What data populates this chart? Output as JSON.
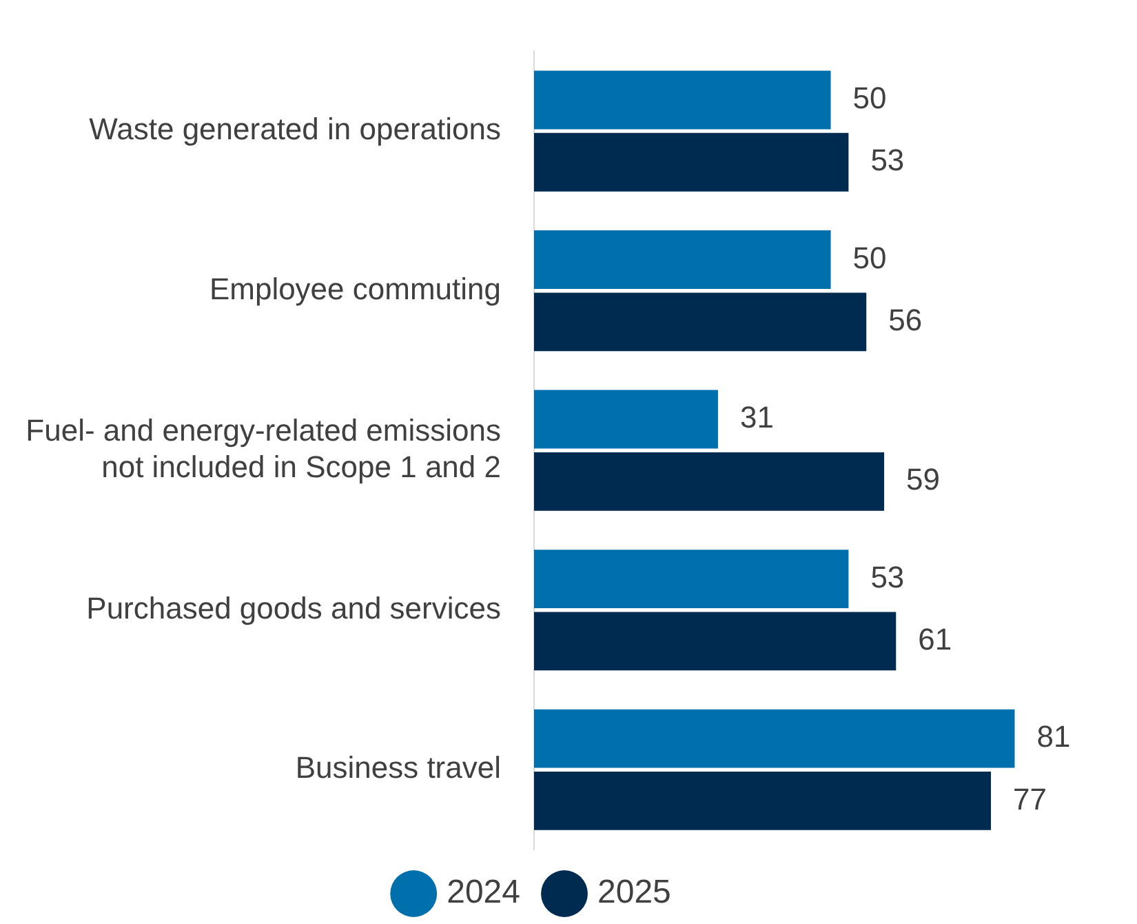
{
  "chart_data": {
    "type": "bar",
    "orientation": "horizontal",
    "categories": [
      "Waste generated in operations",
      "Employee commuting",
      "Fuel- and energy-related emissions not included in Scope 1 and 2",
      "Purchased goods and services",
      "Business travel"
    ],
    "series": [
      {
        "name": "2024",
        "color": "#0070ad",
        "values": [
          50,
          50,
          31,
          53,
          81
        ]
      },
      {
        "name": "2025",
        "color": "#002b50",
        "values": [
          53,
          56,
          59,
          61,
          77
        ]
      }
    ],
    "data_labels": true,
    "legend": "bottom"
  }
}
